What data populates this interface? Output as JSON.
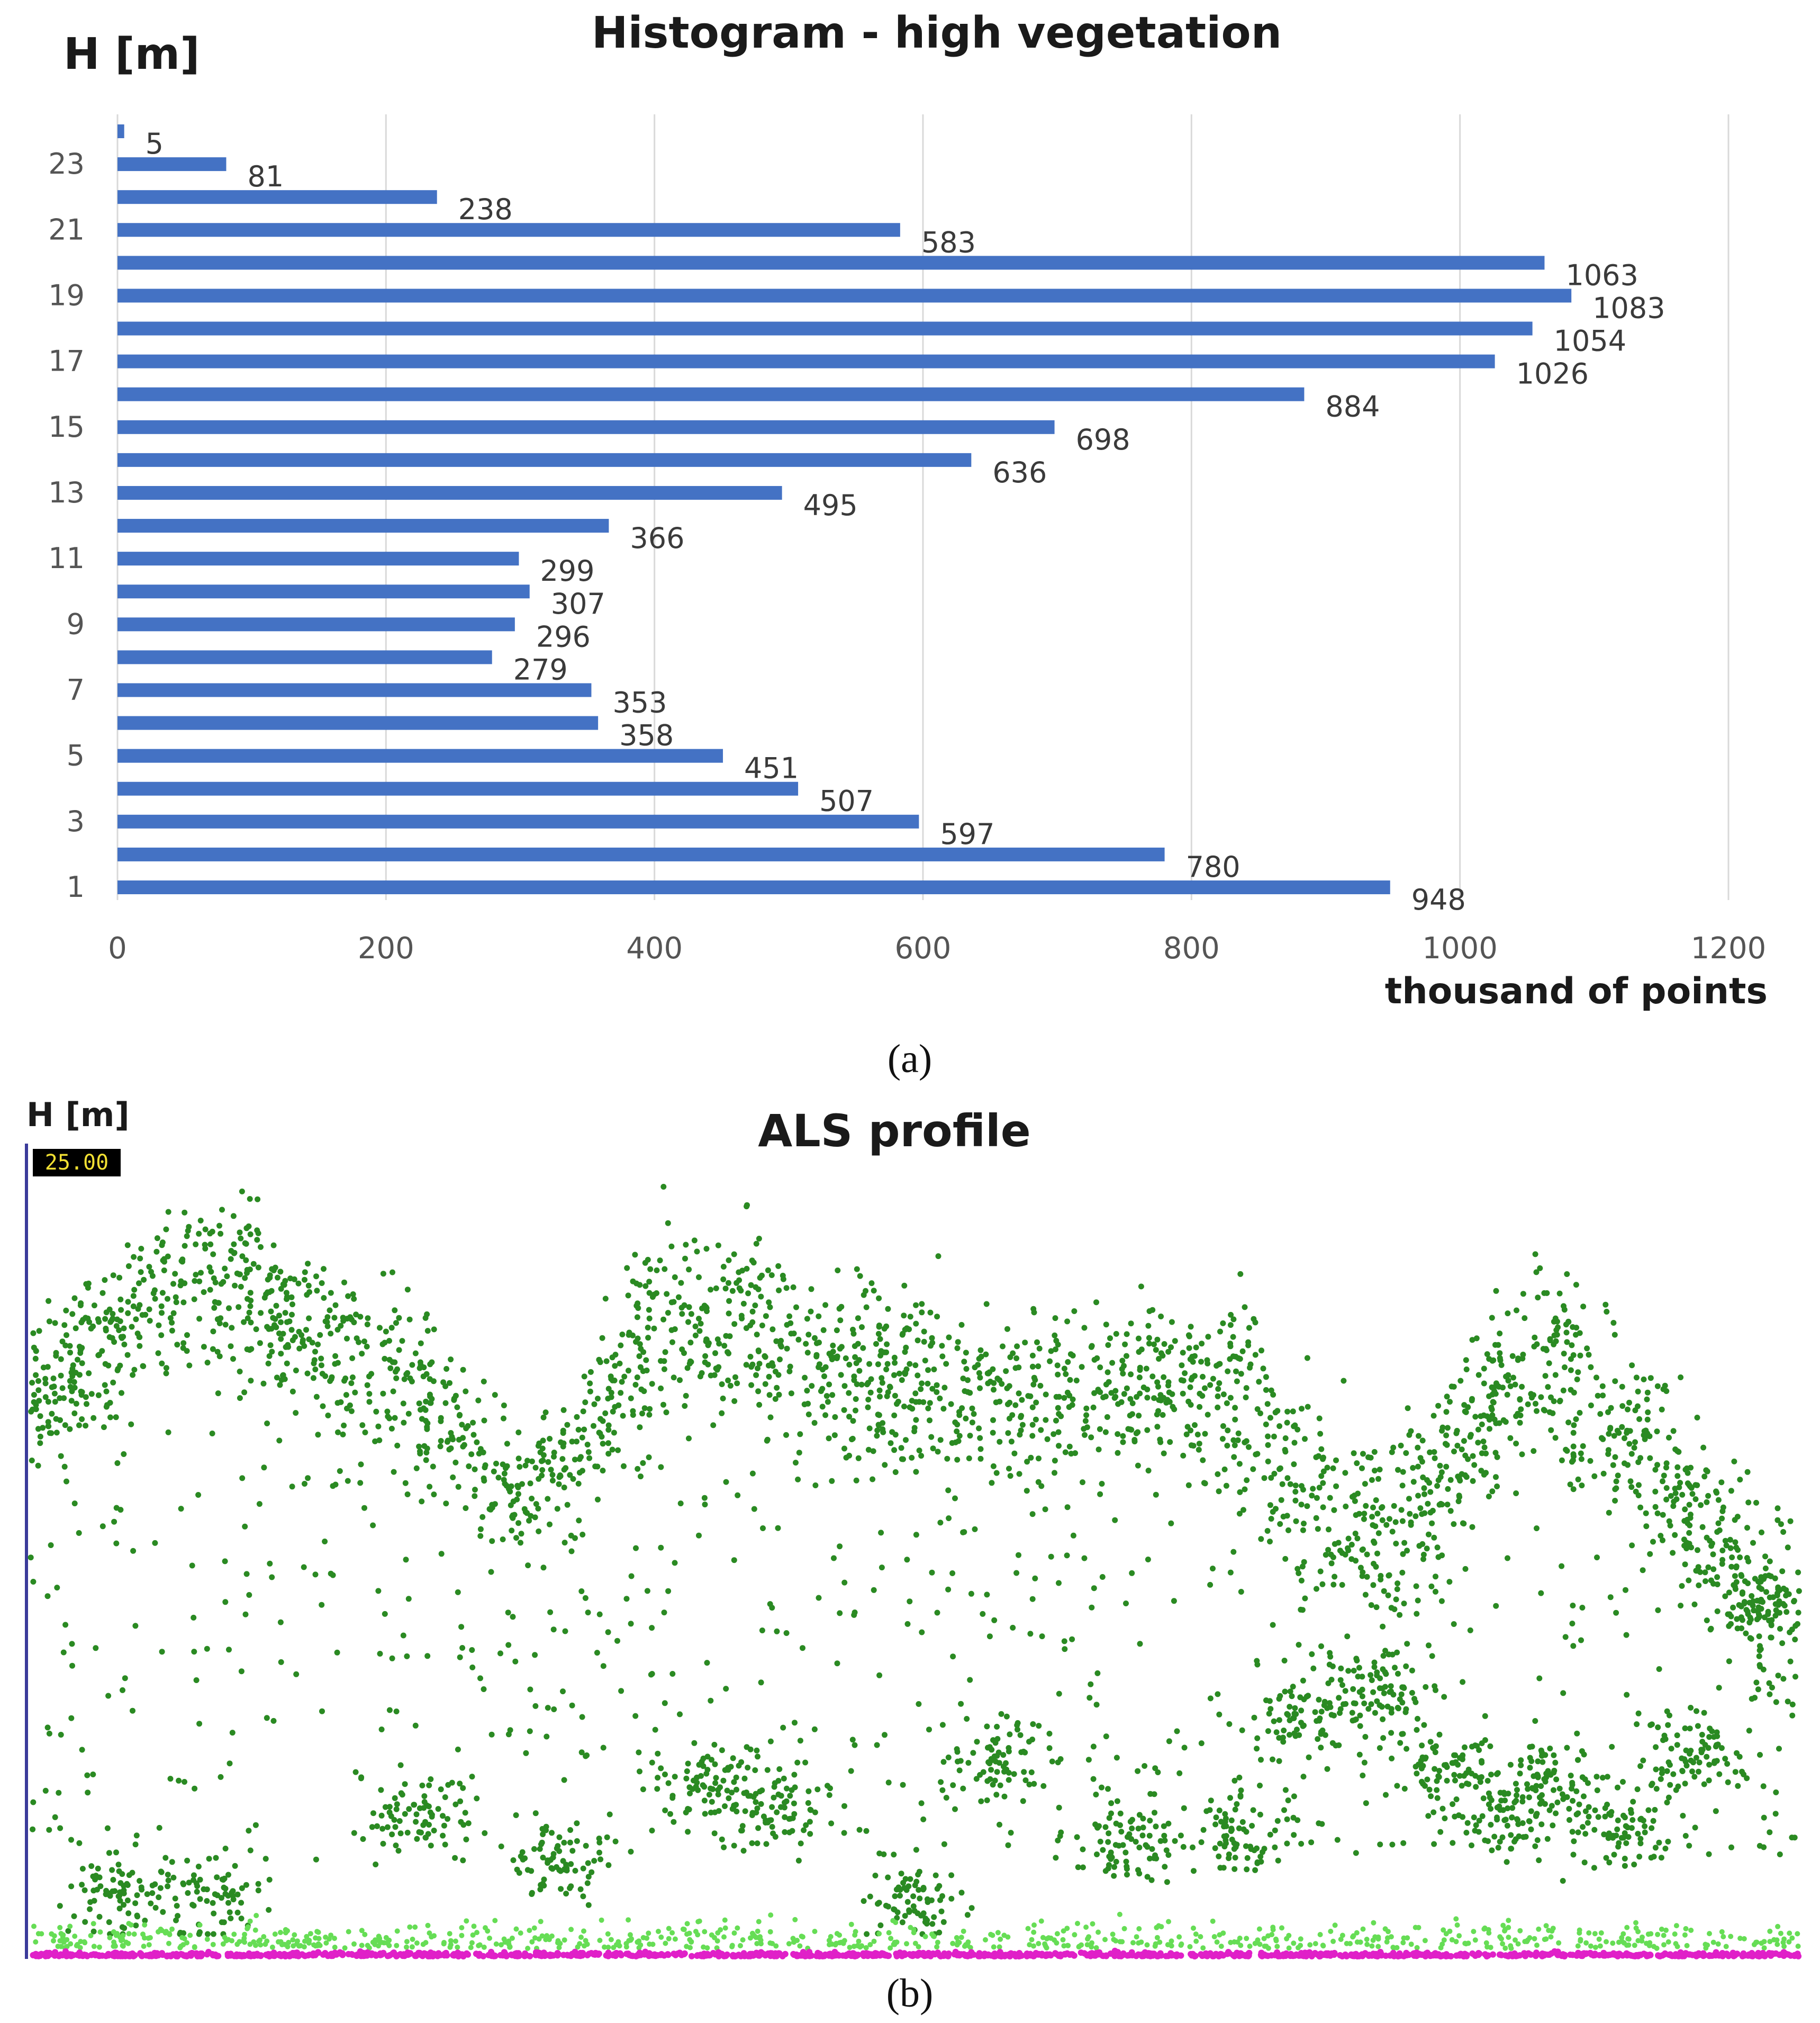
{
  "chart_data": [
    {
      "type": "bar",
      "orientation": "horizontal",
      "title": "Histogram - high vegetation",
      "ylabel": "H [m]",
      "xlabel": "thousand of points",
      "categories": [
        1,
        2,
        3,
        4,
        5,
        6,
        7,
        8,
        9,
        10,
        11,
        12,
        13,
        14,
        15,
        16,
        17,
        18,
        19,
        20,
        21,
        22,
        23,
        24
      ],
      "ytick_labels": [
        "1",
        "3",
        "5",
        "7",
        "9",
        "11",
        "13",
        "15",
        "17",
        "19",
        "21",
        "23"
      ],
      "values": [
        948,
        780,
        597,
        507,
        451,
        358,
        353,
        279,
        296,
        307,
        299,
        366,
        495,
        636,
        698,
        884,
        1026,
        1054,
        1083,
        1063,
        583,
        238,
        81,
        5
      ],
      "value_labels": [
        "948",
        "780",
        "597",
        "507",
        "451",
        "358",
        "353",
        "279",
        "296",
        "307",
        "299",
        "366",
        "495",
        "636",
        "698",
        "884",
        "1026",
        "1054",
        "1083",
        "1063",
        "583",
        "238",
        "81",
        "5"
      ],
      "xlim": [
        0,
        1200
      ],
      "xticks": [
        0,
        200,
        400,
        600,
        800,
        1000,
        1200
      ],
      "xtick_labels": [
        "0",
        "200",
        "400",
        "600",
        "800",
        "1000",
        "1200"
      ],
      "grid": "vertical",
      "bar_color": "#4472C4",
      "caption": "(a)"
    },
    {
      "type": "scatter",
      "title": "ALS profile",
      "ylabel": "H [m]",
      "ymax_label": "25.00",
      "ylim": [
        0,
        25
      ],
      "xlim": [
        0,
        100
      ],
      "series_colors": {
        "high_vegetation": "#2A8A22",
        "low_vegetation": "#66DD55",
        "ground": "#E020C8"
      },
      "canopy_profile": [
        {
          "x": 0,
          "h": 18.5,
          "spread": 2.8
        },
        {
          "x": 10,
          "h": 21.5,
          "spread": 3.5
        },
        {
          "x": 20,
          "h": 19.0,
          "spread": 3.5
        },
        {
          "x": 28,
          "h": 15.0,
          "spread": 3.0
        },
        {
          "x": 37,
          "h": 20.8,
          "spread": 3.8
        },
        {
          "x": 46,
          "h": 19.0,
          "spread": 3.8
        },
        {
          "x": 55,
          "h": 18.0,
          "spread": 3.5
        },
        {
          "x": 66,
          "h": 18.5,
          "spread": 3.5
        },
        {
          "x": 76,
          "h": 14.0,
          "spread": 3.6
        },
        {
          "x": 86,
          "h": 19.0,
          "spread": 4.0
        },
        {
          "x": 100,
          "h": 11.5,
          "spread": 3.8
        }
      ],
      "caption": "(b)"
    }
  ]
}
